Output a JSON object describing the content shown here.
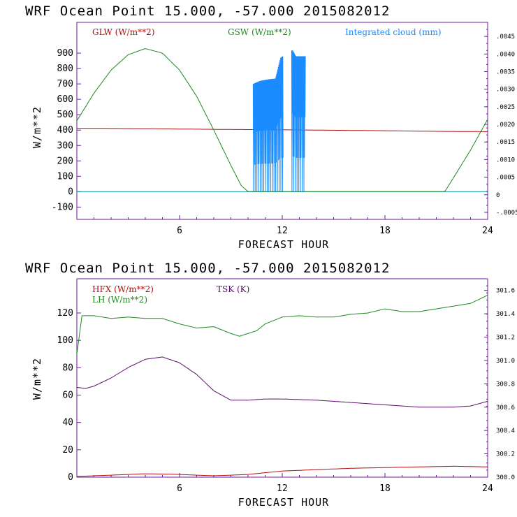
{
  "colors": {
    "red": "#b01010",
    "green": "#1f8a1f",
    "blue": "#1a8cff",
    "cyan": "#149aa8",
    "purple": "#5a0b6a",
    "frame": "#6a1a9a"
  },
  "chart_data": [
    {
      "type": "line",
      "title": "WRF   Ocean Point   15.000, -57.000  2015082012",
      "xlabel": "FORECAST HOUR",
      "ylabel": "W/m**2",
      "xlim": [
        0,
        24
      ],
      "ylim": [
        -180,
        1100
      ],
      "xticks": [
        "6",
        "12",
        "18",
        "24"
      ],
      "yticks": [
        "900",
        "800",
        "700",
        "600",
        "500",
        "400",
        "300",
        "200",
        "100",
        "0",
        "-100"
      ],
      "y2lim": [
        -0.0007,
        0.0049
      ],
      "y2ticks": [
        ".0045",
        ".0040",
        ".0035",
        ".0030",
        ".0025",
        ".0020",
        ".0015",
        ".0010",
        ".0005",
        "0",
        "-.0005"
      ],
      "legend": [
        {
          "label": "GLW (W/m**2)",
          "color": "red"
        },
        {
          "label": "GSW (W/m**2)",
          "color": "green"
        },
        {
          "label": "Integrated cloud (mm)",
          "color": "blue"
        }
      ],
      "series": [
        {
          "name": "GLW",
          "color": "red",
          "x": [
            0,
            3,
            6,
            9,
            12,
            15,
            18,
            21,
            24
          ],
          "values": [
            412,
            410,
            407,
            404,
            402,
            399,
            396,
            392,
            390
          ]
        },
        {
          "name": "GSW",
          "color": "green",
          "x": [
            0,
            1,
            2,
            3,
            4,
            5,
            6,
            7,
            8,
            9,
            9.6,
            10.0,
            21.5,
            22,
            23,
            24
          ],
          "values": [
            460,
            640,
            790,
            890,
            930,
            900,
            790,
            620,
            400,
            170,
            40,
            0,
            0,
            90,
            270,
            470
          ]
        },
        {
          "name": "Integrated cloud",
          "color": "blue",
          "x": [
            10.3,
            10.7,
            11.2,
            11.6,
            11.9,
            12.6,
            12.8,
            13.3
          ],
          "values": [
            700,
            720,
            730,
            735,
            870,
            920,
            880,
            880
          ]
        }
      ]
    },
    {
      "type": "line",
      "title": "WRF   Ocean Point   15.000, -57.000  2015082012",
      "xlabel": "FORECAST HOUR",
      "ylabel": "W/m**2",
      "xlim": [
        0,
        24
      ],
      "ylim": [
        0,
        145
      ],
      "xticks": [
        "6",
        "12",
        "18",
        "24"
      ],
      "yticks": [
        "120",
        "100",
        "80",
        "60",
        "40",
        "20",
        "0"
      ],
      "y2lim": [
        300.0,
        301.7
      ],
      "y2ticks": [
        "301.6",
        "301.4",
        "301.2",
        "301.0",
        "300.8",
        "300.6",
        "300.4",
        "300.2",
        "300.0"
      ],
      "legend": [
        {
          "label": "HFX (W/m**2)",
          "color": "red"
        },
        {
          "label": "LH  (W/m**2)",
          "color": "green"
        },
        {
          "label": "TSK (K)",
          "color": "purple"
        }
      ],
      "series": [
        {
          "name": "HFX",
          "color": "red",
          "x": [
            0,
            2,
            4,
            6,
            8,
            10,
            12,
            14,
            16,
            18,
            20,
            22,
            24
          ],
          "values": [
            0.5,
            1.5,
            2.5,
            2.0,
            1.0,
            2.0,
            4.5,
            5.5,
            6.5,
            7.0,
            7.5,
            8.0,
            7.5
          ]
        },
        {
          "name": "LH",
          "color": "green",
          "x": [
            0,
            0.3,
            1,
            2,
            3,
            4,
            5,
            6,
            7,
            8,
            9,
            9.5,
            10.5,
            11,
            12,
            13,
            14,
            15,
            16,
            17,
            18,
            19,
            20,
            21,
            22,
            23,
            24
          ],
          "values": [
            90,
            118,
            118,
            116,
            117,
            116,
            116,
            112,
            109,
            110,
            105,
            103,
            107,
            112,
            117,
            118,
            117,
            117,
            119,
            120,
            123,
            121,
            121,
            123,
            125,
            127,
            133
          ]
        },
        {
          "name": "TSK",
          "color": "purple",
          "x": [
            0,
            0.5,
            1,
            2,
            3,
            4,
            5,
            6,
            7,
            8,
            9,
            10,
            11,
            12,
            14,
            16,
            18,
            20,
            21,
            22,
            23,
            24
          ],
          "values": [
            300.77,
            300.76,
            300.78,
            300.85,
            300.94,
            301.01,
            301.03,
            300.98,
            300.88,
            300.74,
            300.66,
            300.66,
            300.67,
            300.67,
            300.66,
            300.64,
            300.62,
            300.6,
            300.6,
            300.6,
            300.61,
            300.65
          ]
        }
      ]
    }
  ]
}
